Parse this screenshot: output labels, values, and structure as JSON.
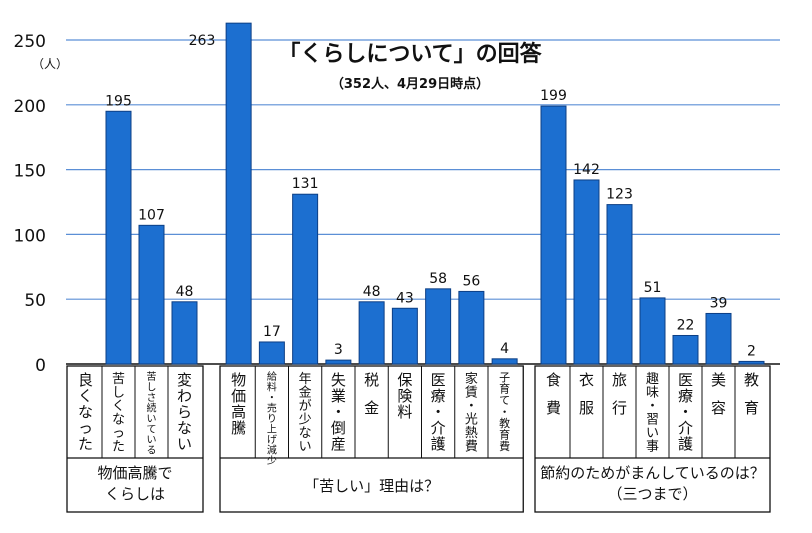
{
  "chart_data": {
    "type": "bar",
    "title": "「くらしについて」の回答",
    "subtitle": "（352人、4月29日時点）",
    "ylabel": "（人）",
    "ylim": [
      0,
      250
    ],
    "yticks": [
      0,
      50,
      100,
      150,
      200,
      250
    ],
    "grid": true,
    "bar_color": "#1c6fd0",
    "grid_color": "#5b8fd6",
    "groups": [
      {
        "label": "物価高騰で\nくらしは",
        "categories": [
          "良くなった",
          "苦しくなった",
          "苦しさ続いている",
          "変わらない"
        ],
        "values": [
          0,
          195,
          107,
          48
        ],
        "value_labels": [
          "",
          "195",
          "107",
          "48"
        ]
      },
      {
        "label": "「苦しい」理由は？",
        "categories": [
          "物価高騰",
          "給料・売り上げ減少",
          "年金が少ない",
          "失業・倒産",
          "税金",
          "保険料",
          "医療・介護",
          "家賃・光熱費",
          "子育て・教育費"
        ],
        "values": [
          263,
          17,
          131,
          3,
          48,
          43,
          58,
          56,
          4
        ],
        "value_labels": [
          "263",
          "17",
          "131",
          "3",
          "48",
          "43",
          "58",
          "56",
          "4"
        ]
      },
      {
        "label": "節約のためがまんしているのは？\n（三つまで）",
        "categories": [
          "食費",
          "衣服",
          "旅行",
          "趣味・習い事",
          "医療・介護",
          "美容",
          "教育"
        ],
        "values": [
          199,
          142,
          123,
          51,
          22,
          39,
          2
        ],
        "value_labels": [
          "199",
          "142",
          "123",
          "51",
          "22",
          "39",
          "2"
        ]
      }
    ]
  }
}
